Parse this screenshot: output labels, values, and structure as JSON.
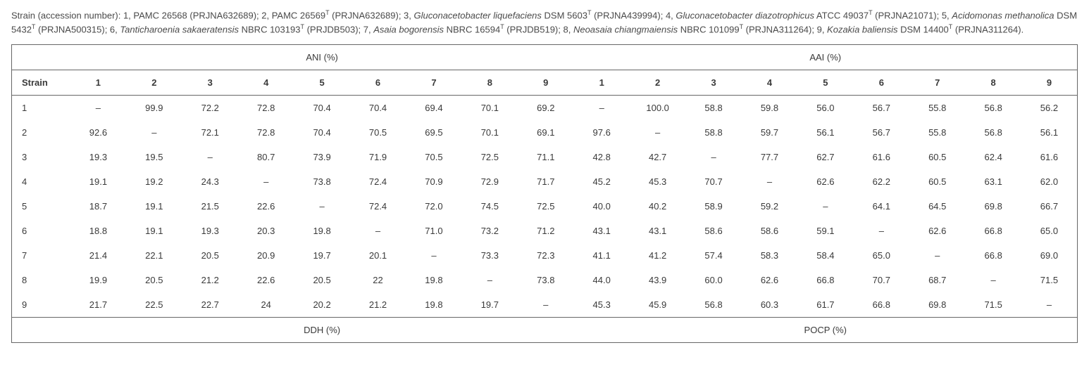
{
  "caption": {
    "prefix": "Strain (accession number): 1, PAMC 26568 (PRJNA632689); 2, PAMC 26569",
    "sup1": "T",
    "part2": " (PRJNA632689); 3, ",
    "italic1": "Gluconacetobacter liquefaciens",
    "part3": " DSM 5603",
    "sup2": "T",
    "part4": " (PRJNA439994); 4, ",
    "italic2": "Gluconacetobacter diazotrophicus",
    "part5": " ATCC 49037",
    "sup3": "T",
    "part6": " (PRJNA21071); 5, ",
    "italic3": "Acidomonas methanolica",
    "part7": " DSM 5432",
    "sup4": "T",
    "part8": " (PRJNA500315); 6, ",
    "italic4": "Tanticharoenia sakaeratensis",
    "part9": " NBRC 103193",
    "sup5": "T",
    "part10": " (PRJDB503); 7, ",
    "italic5": "Asaia bogorensis",
    "part11": " NBRC 16594",
    "sup6": "T",
    "part12": " (PRJDB519); 8, ",
    "italic6": "Neoasaia chiangmaiensis",
    "part13": " NBRC 101099",
    "sup7": "T",
    "part14": " (PRJNA311264); 9, ",
    "italic7": "Kozakia baliensis",
    "part15": " DSM 14400",
    "sup8": "T",
    "part16": " (PRJNA311264)."
  },
  "sections": {
    "top_left": "ANI (%)",
    "top_right": "AAI (%)",
    "bottom_left": "DDH (%)",
    "bottom_right": "POCP (%)"
  },
  "header": {
    "strain": "Strain",
    "cols": [
      "1",
      "2",
      "3",
      "4",
      "5",
      "6",
      "7",
      "8",
      "9",
      "1",
      "2",
      "3",
      "4",
      "5",
      "6",
      "7",
      "8",
      "9"
    ]
  },
  "rows": [
    {
      "label": "1",
      "cells": [
        "–",
        "99.9",
        "72.2",
        "72.8",
        "70.4",
        "70.4",
        "69.4",
        "70.1",
        "69.2",
        "–",
        "100.0",
        "58.8",
        "59.8",
        "56.0",
        "56.7",
        "55.8",
        "56.8",
        "56.2"
      ]
    },
    {
      "label": "2",
      "cells": [
        "92.6",
        "–",
        "72.1",
        "72.8",
        "70.4",
        "70.5",
        "69.5",
        "70.1",
        "69.1",
        "97.6",
        "–",
        "58.8",
        "59.7",
        "56.1",
        "56.7",
        "55.8",
        "56.8",
        "56.1"
      ]
    },
    {
      "label": "3",
      "cells": [
        "19.3",
        "19.5",
        "–",
        "80.7",
        "73.9",
        "71.9",
        "70.5",
        "72.5",
        "71.1",
        "42.8",
        "42.7",
        "–",
        "77.7",
        "62.7",
        "61.6",
        "60.5",
        "62.4",
        "61.6"
      ]
    },
    {
      "label": "4",
      "cells": [
        "19.1",
        "19.2",
        "24.3",
        "–",
        "73.8",
        "72.4",
        "70.9",
        "72.9",
        "71.7",
        "45.2",
        "45.3",
        "70.7",
        "–",
        "62.6",
        "62.2",
        "60.5",
        "63.1",
        "62.0"
      ]
    },
    {
      "label": "5",
      "cells": [
        "18.7",
        "19.1",
        "21.5",
        "22.6",
        "–",
        "72.4",
        "72.0",
        "74.5",
        "72.5",
        "40.0",
        "40.2",
        "58.9",
        "59.2",
        "–",
        "64.1",
        "64.5",
        "69.8",
        "66.7"
      ]
    },
    {
      "label": "6",
      "cells": [
        "18.8",
        "19.1",
        "19.3",
        "20.3",
        "19.8",
        "–",
        "71.0",
        "73.2",
        "71.2",
        "43.1",
        "43.1",
        "58.6",
        "58.6",
        "59.1",
        "–",
        "62.6",
        "66.8",
        "65.0"
      ]
    },
    {
      "label": "7",
      "cells": [
        "21.4",
        "22.1",
        "20.5",
        "20.9",
        "19.7",
        "20.1",
        "–",
        "73.3",
        "72.3",
        "41.1",
        "41.2",
        "57.4",
        "58.3",
        "58.4",
        "65.0",
        "–",
        "66.8",
        "69.0"
      ]
    },
    {
      "label": "8",
      "cells": [
        "19.9",
        "20.5",
        "21.2",
        "22.6",
        "20.5",
        "22",
        "19.8",
        "–",
        "73.8",
        "44.0",
        "43.9",
        "60.0",
        "62.6",
        "66.8",
        "70.7",
        "68.7",
        "–",
        "71.5"
      ]
    },
    {
      "label": "9",
      "cells": [
        "21.7",
        "22.5",
        "22.7",
        "24",
        "20.2",
        "21.2",
        "19.8",
        "19.7",
        "–",
        "45.3",
        "45.9",
        "56.8",
        "60.3",
        "61.7",
        "66.8",
        "69.8",
        "71.5",
        "–"
      ]
    }
  ],
  "style": {
    "background_color": "#ffffff",
    "text_color": "#3a3a3a",
    "border_color": "#666666",
    "caption_fontsize": 13,
    "table_fontsize": 13,
    "row_padding_v": 10,
    "strain_col_width_pct": 5.5,
    "data_col_width_pct": 5.25
  }
}
